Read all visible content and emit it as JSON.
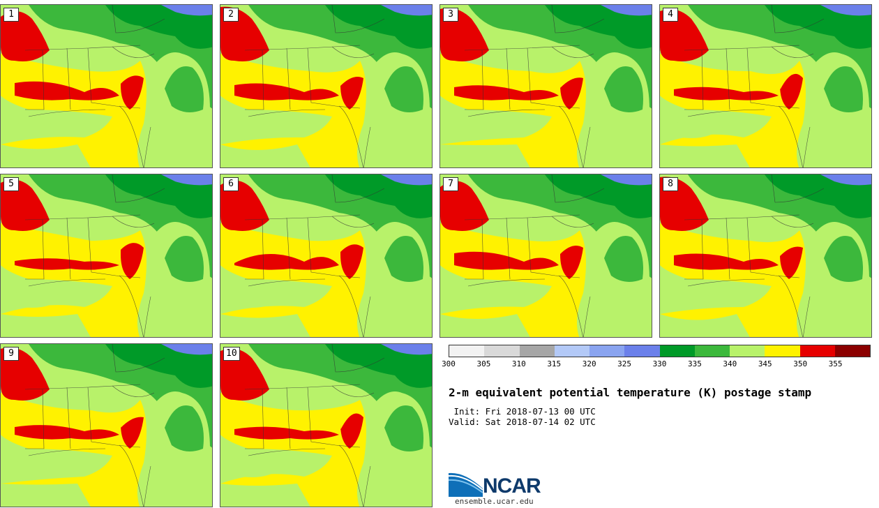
{
  "figure": {
    "title": "2-m equivalent potential temperature (K) postage stamp",
    "init": " Init: Fri 2018-07-13 00 UTC",
    "valid": "Valid: Sat 2018-07-14 02 UTC"
  },
  "members": [
    "1",
    "2",
    "3",
    "4",
    "5",
    "6",
    "7",
    "8",
    "9",
    "10"
  ],
  "colorbar": {
    "colors": [
      "#f2f2f2",
      "#d9d9d9",
      "#a6a6a6",
      "#b3c9f7",
      "#8aa4f0",
      "#6b80ea",
      "#009a28",
      "#3cb83c",
      "#b8f26a",
      "#fff200",
      "#e60000",
      "#8b0000"
    ],
    "tick_labels": [
      "300",
      "305",
      "310",
      "315",
      "320",
      "325",
      "330",
      "335",
      "340",
      "345",
      "350",
      "355"
    ]
  },
  "logo": {
    "name": "NCAR",
    "url": "ensemble.ucar.edu"
  }
}
